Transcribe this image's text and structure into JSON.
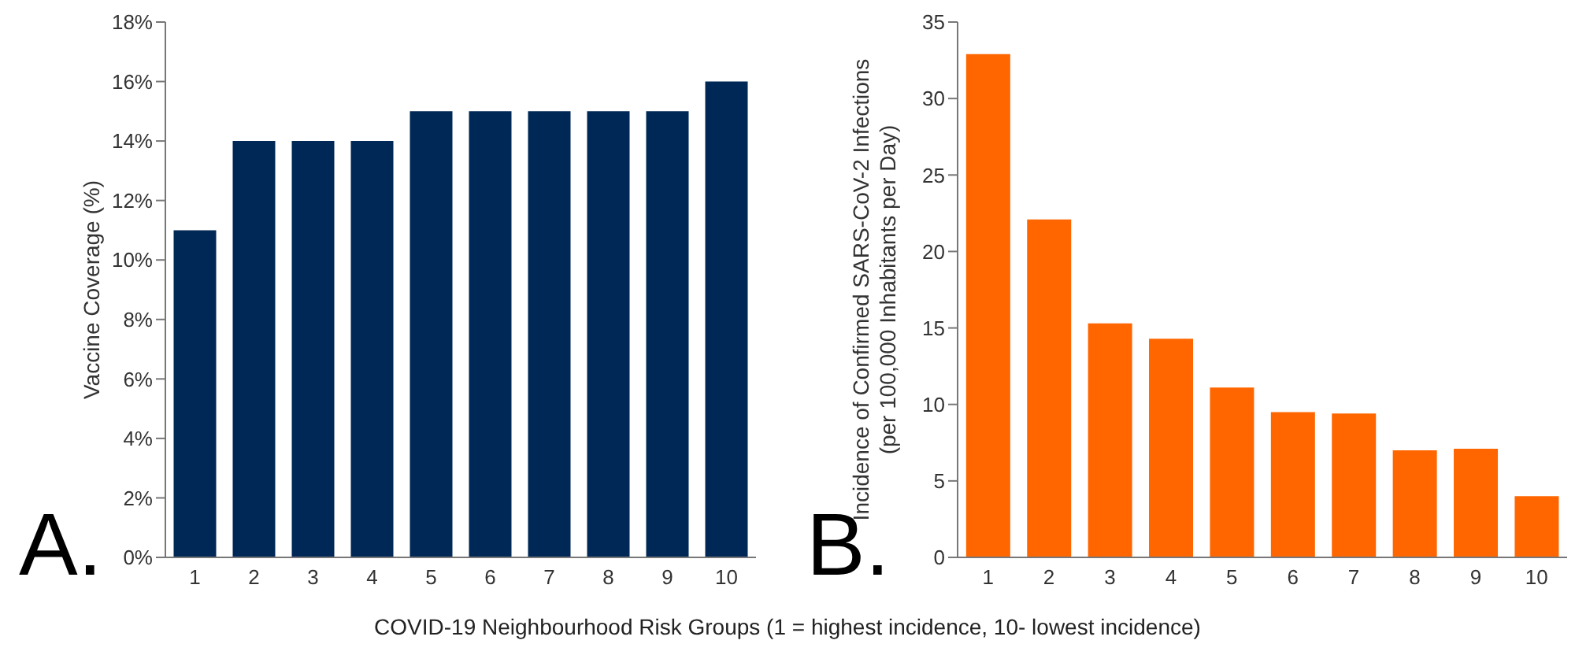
{
  "chart_data": [
    {
      "type": "bar",
      "ylabel": "Vaccine Coverage (%)",
      "xlabel": "COVID-19 Neighbourhood Risk Groups (1 = highest incidence, 10- lowest incidence)",
      "annotations": [
        "A."
      ],
      "categories": [
        "1",
        "2",
        "3",
        "4",
        "5",
        "6",
        "7",
        "8",
        "9",
        "10"
      ],
      "values": [
        11,
        14,
        14,
        14,
        15,
        15,
        15,
        15,
        15,
        16
      ],
      "color": "#002856",
      "ylim": [
        0,
        18
      ],
      "yticks": [
        {
          "value": 0,
          "label": "0%"
        },
        {
          "value": 2,
          "label": "2%"
        },
        {
          "value": 4,
          "label": "4%"
        },
        {
          "value": 6,
          "label": "6%"
        },
        {
          "value": 8,
          "label": "8%"
        },
        {
          "value": 10,
          "label": "10%"
        },
        {
          "value": 12,
          "label": "12%"
        },
        {
          "value": 14,
          "label": "14%"
        },
        {
          "value": 16,
          "label": "16%"
        },
        {
          "value": 18,
          "label": "18%"
        }
      ],
      "grid": false,
      "legend": false
    },
    {
      "type": "bar",
      "ylabel": "Incidence of Confirmed SARS-CoV-2 Infections\n(per 100,000 Inhabitants per Day)",
      "annotations": [
        "B."
      ],
      "categories": [
        "1",
        "2",
        "3",
        "4",
        "5",
        "6",
        "7",
        "8",
        "9",
        "10"
      ],
      "values": [
        32.9,
        22.1,
        15.3,
        14.3,
        11.1,
        9.5,
        9.4,
        7.0,
        7.1,
        4.0
      ],
      "color": "#ff6600",
      "ylim": [
        0,
        35
      ],
      "yticks": [
        0,
        5,
        10,
        15,
        20,
        25,
        30,
        35
      ],
      "grid": false,
      "legend": false
    }
  ]
}
